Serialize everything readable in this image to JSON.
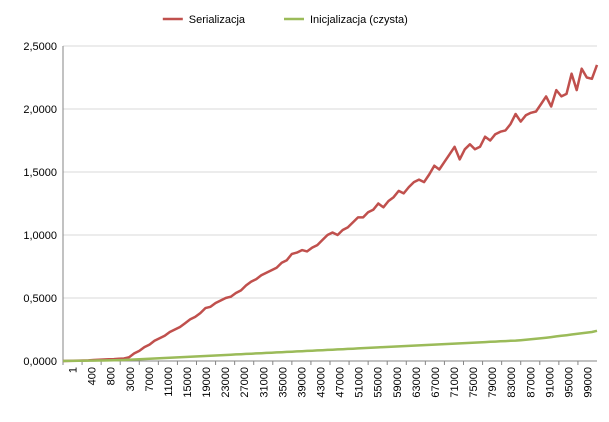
{
  "chart_data": {
    "type": "line",
    "title": "",
    "xlabel": "",
    "ylabel": "",
    "ylim": [
      0,
      2.5
    ],
    "y_ticks": [
      "0,0000",
      "0,5000",
      "1,0000",
      "1,5000",
      "2,0000",
      "2,5000"
    ],
    "x_tick_labels": [
      "1",
      "400",
      "800",
      "3000",
      "7000",
      "11000",
      "15000",
      "19000",
      "23000",
      "27000",
      "31000",
      "35000",
      "39000",
      "43000",
      "47000",
      "51000",
      "55000",
      "59000",
      "63000",
      "67000",
      "71000",
      "75000",
      "79000",
      "83000",
      "87000",
      "91000",
      "95000",
      "99000"
    ],
    "legend_position": "top",
    "grid": "horizontal",
    "series": [
      {
        "name": "Serializacja",
        "color": "#c0504d",
        "values": [
          0.0,
          0.001,
          0.002,
          0.003,
          0.004,
          0.005,
          0.008,
          0.01,
          0.012,
          0.014,
          0.015,
          0.018,
          0.02,
          0.03,
          0.06,
          0.08,
          0.11,
          0.13,
          0.16,
          0.18,
          0.2,
          0.23,
          0.25,
          0.27,
          0.3,
          0.33,
          0.35,
          0.38,
          0.42,
          0.43,
          0.46,
          0.48,
          0.5,
          0.51,
          0.54,
          0.56,
          0.6,
          0.63,
          0.65,
          0.68,
          0.7,
          0.72,
          0.74,
          0.78,
          0.8,
          0.85,
          0.86,
          0.88,
          0.87,
          0.9,
          0.92,
          0.96,
          1.0,
          1.02,
          1.0,
          1.04,
          1.06,
          1.1,
          1.14,
          1.14,
          1.18,
          1.2,
          1.25,
          1.22,
          1.27,
          1.3,
          1.35,
          1.33,
          1.38,
          1.42,
          1.44,
          1.42,
          1.48,
          1.55,
          1.52,
          1.58,
          1.64,
          1.7,
          1.6,
          1.68,
          1.72,
          1.68,
          1.7,
          1.78,
          1.75,
          1.8,
          1.82,
          1.83,
          1.88,
          1.96,
          1.9,
          1.95,
          1.97,
          1.98,
          2.04,
          2.1,
          2.02,
          2.15,
          2.1,
          2.12,
          2.28,
          2.15,
          2.32,
          2.25,
          2.24,
          2.35
        ]
      },
      {
        "name": "Inicjalizacja (czysta)",
        "color": "#9bbb59",
        "values": [
          0.0,
          0.001,
          0.001,
          0.002,
          0.002,
          0.003,
          0.003,
          0.004,
          0.004,
          0.005,
          0.006,
          0.007,
          0.008,
          0.01,
          0.012,
          0.014,
          0.016,
          0.018,
          0.02,
          0.022,
          0.024,
          0.026,
          0.028,
          0.03,
          0.032,
          0.034,
          0.036,
          0.038,
          0.04,
          0.042,
          0.044,
          0.046,
          0.048,
          0.05,
          0.052,
          0.054,
          0.056,
          0.058,
          0.06,
          0.062,
          0.064,
          0.066,
          0.068,
          0.07,
          0.072,
          0.074,
          0.076,
          0.078,
          0.08,
          0.082,
          0.084,
          0.086,
          0.088,
          0.09,
          0.092,
          0.094,
          0.096,
          0.098,
          0.1,
          0.102,
          0.104,
          0.106,
          0.108,
          0.11,
          0.112,
          0.114,
          0.116,
          0.118,
          0.12,
          0.122,
          0.124,
          0.126,
          0.128,
          0.13,
          0.132,
          0.134,
          0.136,
          0.138,
          0.14,
          0.142,
          0.144,
          0.146,
          0.148,
          0.15,
          0.152,
          0.154,
          0.156,
          0.158,
          0.16,
          0.162,
          0.165,
          0.168,
          0.172,
          0.176,
          0.18,
          0.185,
          0.19,
          0.195,
          0.2,
          0.205,
          0.21,
          0.215,
          0.22,
          0.225,
          0.23,
          0.24
        ]
      }
    ]
  }
}
